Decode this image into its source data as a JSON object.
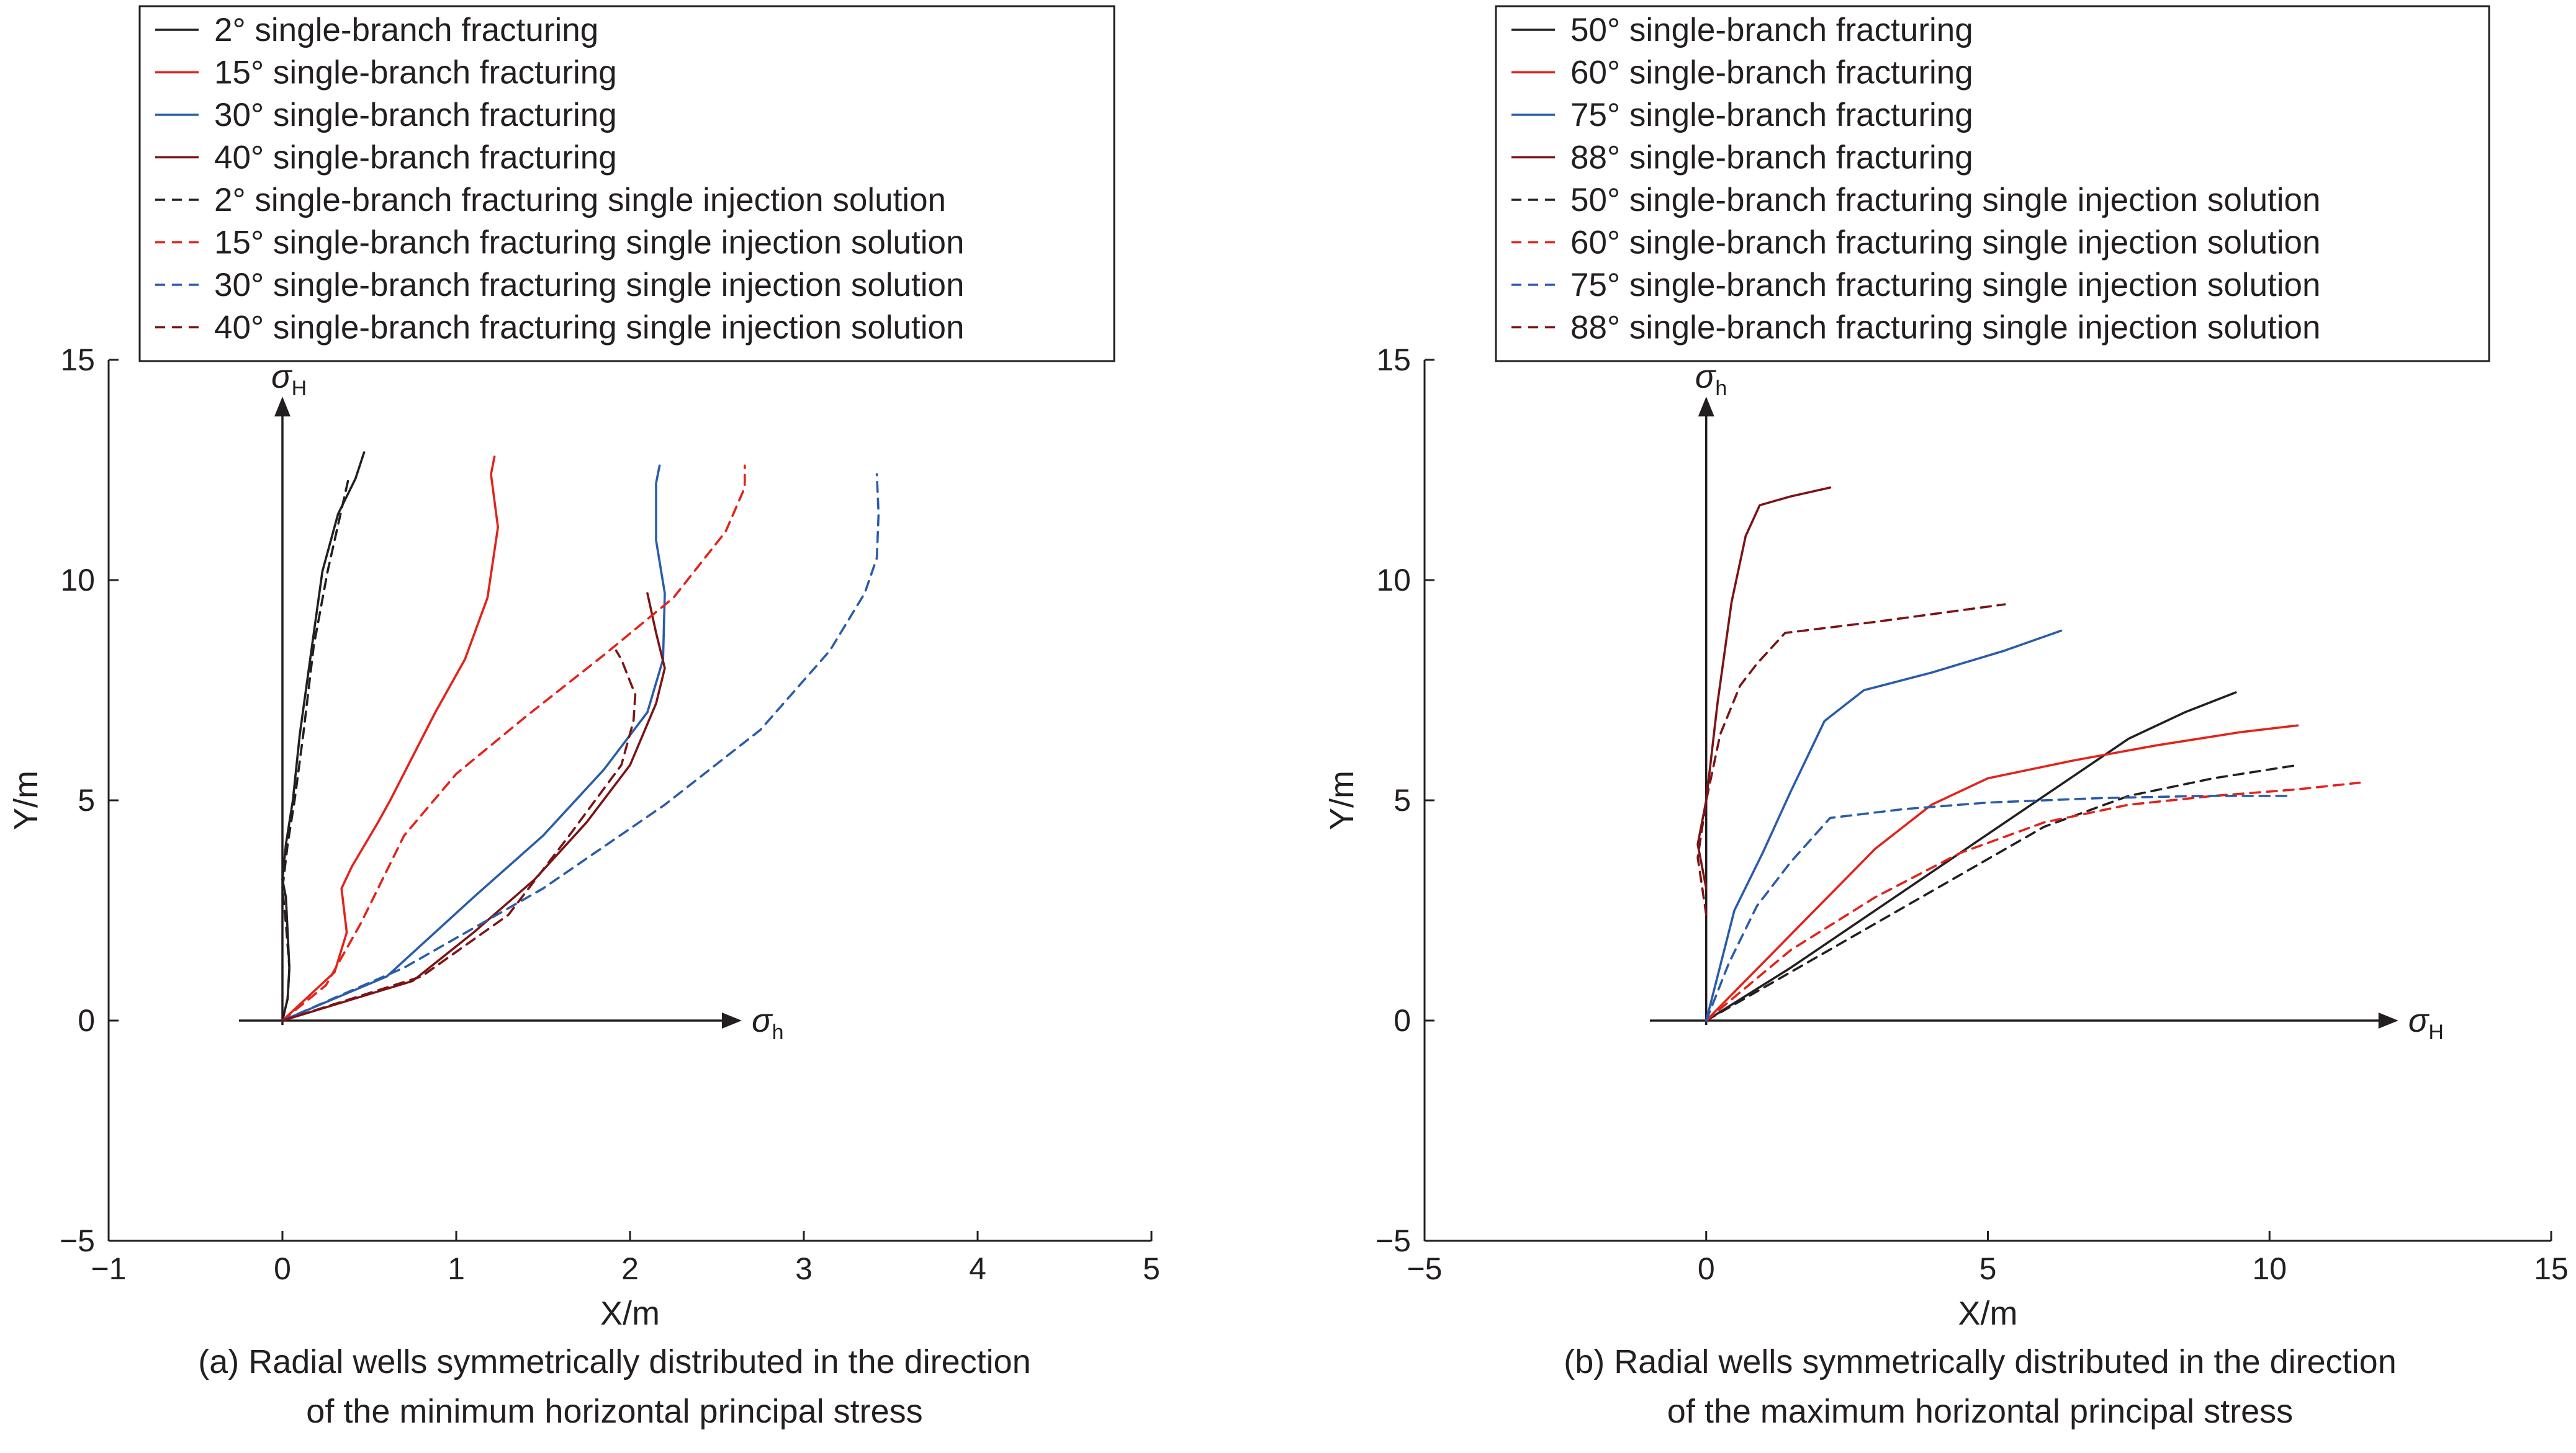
{
  "colors": {
    "black": "#231f20",
    "red": "#e2231a",
    "blue": "#2a5caa",
    "darkred": "#7b1416"
  },
  "chart_data": [
    {
      "type": "line",
      "title": "",
      "xlabel": "X/m",
      "ylabel": "Y/m",
      "xlim": [
        -1,
        5
      ],
      "ylim": [
        -5,
        15
      ],
      "xticks": [
        -1,
        0,
        1,
        2,
        3,
        4,
        5
      ],
      "yticks": [
        -5,
        0,
        5,
        10,
        15
      ],
      "grid": false,
      "legend_position": "top",
      "axis_arrow_x_label": {
        "sym": "σ",
        "sub": "h"
      },
      "axis_arrow_y_label": {
        "sym": "σ",
        "sub": "H"
      },
      "caption": {
        "line1": "(a) Radial wells symmetrically distributed in the direction",
        "line2": "of the minimum horizontal principal stress"
      },
      "series": [
        {
          "name": "2° single-branch fracturing",
          "color": "#231f20",
          "dash": false,
          "points": [
            [
              0,
              0
            ],
            [
              0.03,
              0.5
            ],
            [
              0.04,
              1.2
            ],
            [
              0.03,
              2.0
            ],
            [
              0.02,
              2.8
            ],
            [
              0,
              3.2
            ],
            [
              0.02,
              4
            ],
            [
              0.06,
              5
            ],
            [
              0.1,
              6.5
            ],
            [
              0.17,
              8.5
            ],
            [
              0.23,
              10.2
            ],
            [
              0.32,
              11.5
            ],
            [
              0.42,
              12.3
            ],
            [
              0.47,
              12.9
            ]
          ]
        },
        {
          "name": "15° single-branch fracturing",
          "color": "#e2231a",
          "dash": false,
          "points": [
            [
              0,
              0
            ],
            [
              0.3,
              1.1
            ],
            [
              0.37,
              2.0
            ],
            [
              0.34,
              3.0
            ],
            [
              0.4,
              3.5
            ],
            [
              0.55,
              4.5
            ],
            [
              0.62,
              5.0
            ],
            [
              0.75,
              6.0
            ],
            [
              0.88,
              7.0
            ],
            [
              1.05,
              8.2
            ],
            [
              1.18,
              9.6
            ],
            [
              1.24,
              11.2
            ],
            [
              1.22,
              11.8
            ],
            [
              1.2,
              12.4
            ],
            [
              1.22,
              12.8
            ]
          ]
        },
        {
          "name": "30° single-branch fracturing",
          "color": "#2a5caa",
          "dash": false,
          "points": [
            [
              0,
              0
            ],
            [
              0.6,
              1.0
            ],
            [
              1.1,
              2.8
            ],
            [
              1.5,
              4.2
            ],
            [
              1.85,
              5.7
            ],
            [
              2.1,
              7.0
            ],
            [
              2.19,
              8.2
            ],
            [
              2.2,
              9.7
            ],
            [
              2.15,
              10.9
            ],
            [
              2.15,
              12.2
            ],
            [
              2.17,
              12.6
            ]
          ]
        },
        {
          "name": "40° single-branch fracturing",
          "color": "#7b1416",
          "dash": false,
          "points": [
            [
              0,
              0
            ],
            [
              0.75,
              0.9
            ],
            [
              1.1,
              2.0
            ],
            [
              1.45,
              3.2
            ],
            [
              1.75,
              4.5
            ],
            [
              2.0,
              5.8
            ],
            [
              2.15,
              7.2
            ],
            [
              2.2,
              8.0
            ],
            [
              2.15,
              8.8
            ],
            [
              2.1,
              9.7
            ]
          ]
        },
        {
          "name": "2° single-branch fracturing single injection solution",
          "color": "#231f20",
          "dash": true,
          "points": [
            [
              0,
              0
            ],
            [
              0.03,
              0.5
            ],
            [
              0.04,
              1.2
            ],
            [
              0.02,
              2.2
            ],
            [
              0,
              3.0
            ],
            [
              0.03,
              4
            ],
            [
              0.07,
              5
            ],
            [
              0.12,
              6.5
            ],
            [
              0.18,
              8.5
            ],
            [
              0.26,
              10.2
            ],
            [
              0.34,
              11.6
            ],
            [
              0.38,
              12.3
            ]
          ]
        },
        {
          "name": "15° single-branch fracturing single injection solution",
          "color": "#e2231a",
          "dash": true,
          "points": [
            [
              0,
              0
            ],
            [
              0.25,
              0.8
            ],
            [
              0.45,
              2.2
            ],
            [
              0.7,
              4.2
            ],
            [
              1.0,
              5.6
            ],
            [
              1.4,
              6.9
            ],
            [
              1.85,
              8.3
            ],
            [
              2.25,
              9.6
            ],
            [
              2.55,
              11.1
            ],
            [
              2.66,
              12.1
            ],
            [
              2.66,
              12.6
            ]
          ]
        },
        {
          "name": "30° single-branch fracturing single injection solution",
          "color": "#2a5caa",
          "dash": true,
          "points": [
            [
              0,
              0
            ],
            [
              0.7,
              1.2
            ],
            [
              1.5,
              3.0
            ],
            [
              2.2,
              4.9
            ],
            [
              2.75,
              6.6
            ],
            [
              3.15,
              8.4
            ],
            [
              3.35,
              9.7
            ],
            [
              3.42,
              10.5
            ],
            [
              3.43,
              11.5
            ],
            [
              3.42,
              12.4
            ]
          ]
        },
        {
          "name": "40° single-branch fracturing single injection solution",
          "color": "#7b1416",
          "dash": true,
          "points": [
            [
              0,
              0
            ],
            [
              0.8,
              1.0
            ],
            [
              1.3,
              2.4
            ],
            [
              1.65,
              4.2
            ],
            [
              1.95,
              5.8
            ],
            [
              2.02,
              6.8
            ],
            [
              2.03,
              7.4
            ],
            [
              1.95,
              8.2
            ],
            [
              1.92,
              8.4
            ]
          ]
        }
      ]
    },
    {
      "type": "line",
      "title": "",
      "xlabel": "X/m",
      "ylabel": "Y/m",
      "xlim": [
        -5,
        15
      ],
      "ylim": [
        -5,
        15
      ],
      "xticks": [
        -5,
        0,
        5,
        10,
        15
      ],
      "yticks": [
        -5,
        0,
        5,
        10,
        15
      ],
      "grid": false,
      "legend_position": "top",
      "axis_arrow_x_label": {
        "sym": "σ",
        "sub": "H"
      },
      "axis_arrow_y_label": {
        "sym": "σ",
        "sub": "h"
      },
      "caption": {
        "line1": "(b) Radial wells symmetrically distributed in the direction",
        "line2": "of the maximum horizontal principal stress"
      },
      "series": [
        {
          "name": "50° single-branch fracturing",
          "color": "#231f20",
          "dash": false,
          "points": [
            [
              0,
              0
            ],
            [
              1.5,
              1.2
            ],
            [
              3,
              2.5
            ],
            [
              4.5,
              3.8
            ],
            [
              6,
              5.1
            ],
            [
              7.5,
              6.4
            ],
            [
              8.5,
              7.0
            ],
            [
              9.4,
              7.45
            ]
          ]
        },
        {
          "name": "60° single-branch fracturing",
          "color": "#e2231a",
          "dash": false,
          "points": [
            [
              0,
              0
            ],
            [
              1,
              1.3
            ],
            [
              2,
              2.6
            ],
            [
              3,
              3.9
            ],
            [
              4,
              4.9
            ],
            [
              5,
              5.5
            ],
            [
              6.5,
              5.9
            ],
            [
              8,
              6.25
            ],
            [
              9.5,
              6.55
            ],
            [
              10.5,
              6.7
            ]
          ]
        },
        {
          "name": "75° single-branch fracturing",
          "color": "#2a5caa",
          "dash": false,
          "points": [
            [
              0,
              0
            ],
            [
              0.5,
              2.5
            ],
            [
              1,
              3.8
            ],
            [
              1.5,
              5.2
            ],
            [
              2.1,
              6.8
            ],
            [
              2.8,
              7.5
            ],
            [
              4,
              7.9
            ],
            [
              5.3,
              8.4
            ],
            [
              6.3,
              8.85
            ]
          ]
        },
        {
          "name": "88° single-branch fracturing",
          "color": "#7b1416",
          "dash": false,
          "points": [
            [
              0,
              3.0
            ],
            [
              -0.15,
              4.0
            ],
            [
              0,
              5.0
            ],
            [
              0.2,
              7.2
            ],
            [
              0.45,
              9.5
            ],
            [
              0.7,
              11.0
            ],
            [
              0.95,
              11.7
            ],
            [
              1.5,
              11.9
            ],
            [
              2.2,
              12.1
            ]
          ]
        },
        {
          "name": "50° single-branch fracturing single injection solution",
          "color": "#231f20",
          "dash": true,
          "points": [
            [
              0,
              0
            ],
            [
              1.5,
              1.1
            ],
            [
              3,
              2.2
            ],
            [
              4.5,
              3.3
            ],
            [
              6,
              4.4
            ],
            [
              7.5,
              5.1
            ],
            [
              9,
              5.5
            ],
            [
              10.5,
              5.8
            ]
          ]
        },
        {
          "name": "60° single-branch fracturing single injection solution",
          "color": "#e2231a",
          "dash": true,
          "points": [
            [
              0,
              0
            ],
            [
              1.5,
              1.6
            ],
            [
              3,
              2.8
            ],
            [
              4.5,
              3.8
            ],
            [
              6,
              4.5
            ],
            [
              7.5,
              4.9
            ],
            [
              9,
              5.1
            ],
            [
              10.5,
              5.25
            ],
            [
              11.6,
              5.4
            ]
          ]
        },
        {
          "name": "75° single-branch fracturing single injection solution",
          "color": "#2a5caa",
          "dash": true,
          "points": [
            [
              0,
              0
            ],
            [
              0.4,
              1.3
            ],
            [
              0.9,
              2.6
            ],
            [
              1.5,
              3.6
            ],
            [
              2.2,
              4.6
            ],
            [
              3.5,
              4.8
            ],
            [
              5,
              4.95
            ],
            [
              7,
              5.05
            ],
            [
              8.8,
              5.1
            ],
            [
              10.4,
              5.1
            ]
          ]
        },
        {
          "name": "88° single-branch fracturing single injection solution",
          "color": "#7b1416",
          "dash": true,
          "points": [
            [
              0,
              2.4
            ],
            [
              -0.15,
              3.7
            ],
            [
              0,
              5.0
            ],
            [
              0.25,
              6.5
            ],
            [
              0.6,
              7.6
            ],
            [
              0.9,
              8.1
            ],
            [
              1.4,
              8.8
            ],
            [
              3,
              9.05
            ],
            [
              5.3,
              9.45
            ]
          ]
        }
      ]
    }
  ]
}
